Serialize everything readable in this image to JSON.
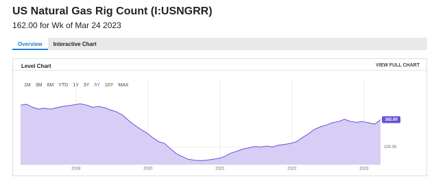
{
  "header": {
    "title": "US Natural Gas Rig Count (I:USNGRR)",
    "subtitle": "162.00 for Wk of Mar 24 2023"
  },
  "tabs": [
    "Overview",
    "Interactive Chart"
  ],
  "panel": {
    "title": "Level Chart",
    "link": "VIEW FULL CHART"
  },
  "range_buttons": [
    "1M",
    "3M",
    "6M",
    "YTD",
    "1Y",
    "3Y",
    "5Y",
    "10Y",
    "MAX"
  ],
  "chart_data": {
    "type": "area",
    "x": [
      2018.23,
      2018.31,
      2018.4,
      2018.48,
      2018.56,
      2018.65,
      2018.73,
      2018.81,
      2018.9,
      2018.98,
      2019.06,
      2019.15,
      2019.23,
      2019.31,
      2019.4,
      2019.48,
      2019.56,
      2019.65,
      2019.73,
      2019.81,
      2019.9,
      2019.98,
      2020.06,
      2020.15,
      2020.23,
      2020.31,
      2020.4,
      2020.48,
      2020.56,
      2020.65,
      2020.73,
      2020.81,
      2020.9,
      2020.98,
      2021.06,
      2021.15,
      2021.23,
      2021.31,
      2021.4,
      2021.48,
      2021.56,
      2021.65,
      2021.73,
      2021.81,
      2021.9,
      2021.98,
      2022.06,
      2022.15,
      2022.23,
      2022.31,
      2022.4,
      2022.48,
      2022.56,
      2022.65,
      2022.73,
      2022.81,
      2022.9,
      2022.98,
      2023.06,
      2023.15,
      2023.23
    ],
    "values": [
      195,
      197,
      190,
      186,
      188,
      186,
      189,
      192,
      194,
      196,
      198,
      195,
      190,
      192,
      189,
      184,
      180,
      172,
      160,
      150,
      140,
      132,
      122,
      112,
      108,
      96,
      84,
      78,
      72,
      70,
      69,
      70,
      72,
      74,
      78,
      86,
      90,
      95,
      98,
      101,
      100,
      102,
      100,
      104,
      106,
      108,
      112,
      122,
      130,
      140,
      146,
      150,
      155,
      158,
      163,
      158,
      156,
      158,
      155,
      152,
      162
    ],
    "color": "#6b4fd8",
    "fill": "#d8cdf4",
    "current_value": {
      "value": 162,
      "label": "162.00"
    },
    "xlim": [
      2018.23,
      2023.23
    ],
    "xticks": [
      2019,
      2020,
      2021,
      2022,
      2023
    ],
    "ylim": [
      60,
      250
    ],
    "yticks": [
      {
        "value": 100,
        "label": "100.00"
      }
    ],
    "grid": true
  }
}
